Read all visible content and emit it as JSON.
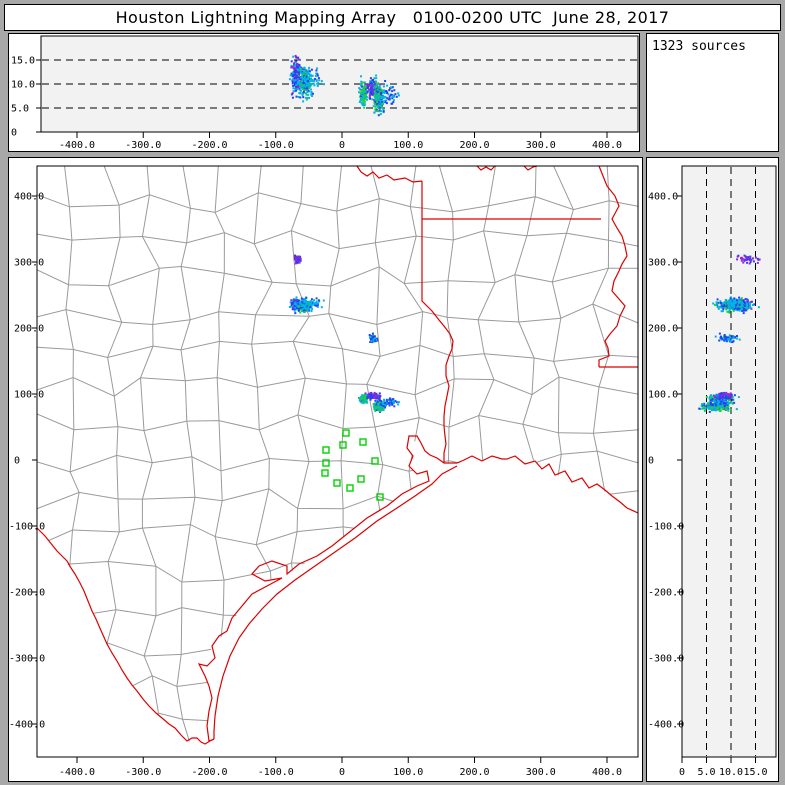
{
  "window": {
    "title": "Houston Lightning Mapping Array   0100-0200 UTC  June 28, 2017"
  },
  "stats": {
    "sources_label": "1323 sources"
  },
  "axes": {
    "ew_ticks": [
      {
        "v": -400,
        "label": "-400.0"
      },
      {
        "v": -300,
        "label": "-300.0"
      },
      {
        "v": -200,
        "label": "-200.0"
      },
      {
        "v": -100,
        "label": "-100.0"
      },
      {
        "v": 0,
        "label": "0"
      },
      {
        "v": 100,
        "label": "100.0"
      },
      {
        "v": 200,
        "label": "200.0"
      },
      {
        "v": 300,
        "label": "300.0"
      },
      {
        "v": 400,
        "label": "400.0"
      }
    ],
    "ns_ticks": [
      {
        "v": 400,
        "label": "400.0"
      },
      {
        "v": 300,
        "label": "300.0"
      },
      {
        "v": 200,
        "label": "200.0"
      },
      {
        "v": 100,
        "label": "100.0"
      },
      {
        "v": 0,
        "label": "0"
      },
      {
        "v": -100,
        "label": "-100.0"
      },
      {
        "v": -200,
        "label": "-200.0"
      },
      {
        "v": -300,
        "label": "-300.0"
      },
      {
        "v": -400,
        "label": "-400.0"
      }
    ],
    "alt_ticks": [
      {
        "v": 0,
        "label": "0"
      },
      {
        "v": 5,
        "label": "5.0"
      },
      {
        "v": 10,
        "label": "10.0"
      },
      {
        "v": 15,
        "label": "15.0"
      }
    ],
    "alt_gridlines": [
      5,
      10,
      15
    ]
  },
  "colors": {
    "palette": {
      "purple": "#9922dd",
      "blue": "#2244ee",
      "cyan": "#00b4e6",
      "green": "#22cc44"
    },
    "border_red": "#dd0000",
    "county_gray": "#9a9a9a",
    "station_green": "#00d400",
    "plot_bg": "#f2f2f2",
    "map_bg": "#ffffff",
    "frame_gray": "#a8a8a8"
  },
  "chart_data": {
    "type": "scatter",
    "title": "Houston Lightning Mapping Array",
    "time_window_utc": "0100-0200",
    "date": "June 28, 2017",
    "source_count": 1323,
    "panels": [
      {
        "id": "altitude-vs-eastwest",
        "x_range_km": [
          -460,
          450
        ],
        "alt_range_km": [
          0,
          20
        ],
        "gridlines_alt_km": [
          5,
          10,
          15
        ]
      },
      {
        "id": "plan-view-map",
        "x_range_km": [
          -460,
          450
        ],
        "y_range_km": [
          -448,
          445
        ]
      },
      {
        "id": "altitude-vs-northsouth",
        "alt_range_km": [
          0,
          19
        ],
        "y_range_km": [
          -448,
          445
        ],
        "gridlines_alt_km": [
          5,
          10,
          15
        ]
      }
    ],
    "clusters": [
      {
        "name": "north-small",
        "ew": -67,
        "ns": 304,
        "alt": 13.5,
        "sd_ew": 2.2,
        "sd_ns": 3.5,
        "sd_alt": 1.3,
        "n": 40,
        "colors": [
          [
            "purple",
            0.7
          ],
          [
            "blue",
            0.25
          ],
          [
            "cyan",
            0.05
          ]
        ]
      },
      {
        "name": "north-main-west",
        "ew": -70,
        "ns": 236,
        "alt": 11.5,
        "sd_ew": 3.5,
        "sd_ns": 4.5,
        "sd_alt": 1.8,
        "n": 150,
        "colors": [
          [
            "blue",
            0.5
          ],
          [
            "cyan",
            0.3
          ],
          [
            "purple",
            0.2
          ]
        ]
      },
      {
        "name": "north-main-east",
        "ew": -56,
        "ns": 234,
        "alt": 10.5,
        "sd_ew": 4.5,
        "sd_ns": 4.5,
        "sd_alt": 1.6,
        "n": 220,
        "colors": [
          [
            "cyan",
            0.55
          ],
          [
            "blue",
            0.25
          ],
          [
            "green",
            0.2
          ]
        ]
      },
      {
        "name": "north-main-tail",
        "ew": -42,
        "ns": 238,
        "alt": 11,
        "sd_ew": 7,
        "sd_ns": 3,
        "sd_alt": 1.2,
        "n": 30,
        "colors": [
          [
            "cyan",
            0.7
          ],
          [
            "blue",
            0.3
          ]
        ]
      },
      {
        "name": "central",
        "ew": 48,
        "ns": 185,
        "alt": 9.5,
        "sd_ew": 2.6,
        "sd_ns": 2.6,
        "sd_alt": 1.1,
        "n": 60,
        "colors": [
          [
            "cyan",
            0.5
          ],
          [
            "blue",
            0.5
          ]
        ]
      },
      {
        "name": "south-green",
        "ew": 32,
        "ns": 93,
        "alt": 8,
        "sd_ew": 2.6,
        "sd_ns": 2.6,
        "sd_alt": 1.2,
        "n": 110,
        "colors": [
          [
            "green",
            0.55
          ],
          [
            "cyan",
            0.35
          ],
          [
            "blue",
            0.1
          ]
        ]
      },
      {
        "name": "south-purple",
        "ew": 47,
        "ns": 97,
        "alt": 8.5,
        "sd_ew": 5,
        "sd_ns": 2.4,
        "sd_alt": 1.0,
        "n": 90,
        "colors": [
          [
            "purple",
            0.5
          ],
          [
            "blue",
            0.35
          ],
          [
            "cyan",
            0.15
          ]
        ]
      },
      {
        "name": "south-main",
        "ew": 56,
        "ns": 81,
        "alt": 7,
        "sd_ew": 3.6,
        "sd_ns": 3.6,
        "sd_alt": 1.5,
        "n": 210,
        "colors": [
          [
            "cyan",
            0.4
          ],
          [
            "green",
            0.4
          ],
          [
            "blue",
            0.2
          ]
        ]
      },
      {
        "name": "south-east-tail",
        "ew": 72,
        "ns": 87,
        "alt": 8,
        "sd_ew": 7,
        "sd_ns": 3,
        "sd_alt": 1.0,
        "n": 50,
        "colors": [
          [
            "blue",
            0.75
          ],
          [
            "cyan",
            0.25
          ]
        ]
      }
    ],
    "stations_km": [
      [
        6.0,
        40.9
      ],
      [
        31.7,
        27.3
      ],
      [
        1.5,
        22.7
      ],
      [
        -24.2,
        15.2
      ],
      [
        -24.2,
        -4.5
      ],
      [
        -25.7,
        -19.7
      ],
      [
        -7.5,
        -34.8
      ],
      [
        12.1,
        -42.4
      ],
      [
        49.8,
        -1.5
      ],
      [
        28.7,
        -28.8
      ],
      [
        57.4,
        -56.1
      ]
    ]
  }
}
